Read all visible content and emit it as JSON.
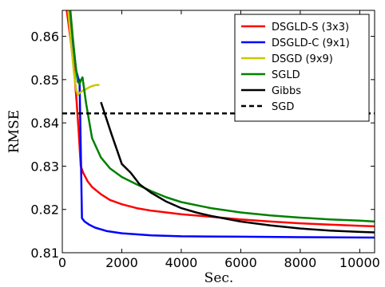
{
  "chart_data": {
    "type": "line",
    "title": "",
    "xlabel": "Sec.",
    "ylabel": "RMSE",
    "xlim": [
      0,
      10500
    ],
    "ylim": [
      0.81,
      0.866
    ],
    "x_ticks": [
      0,
      2000,
      4000,
      6000,
      8000,
      10000
    ],
    "y_ticks": [
      0.81,
      0.82,
      0.83,
      0.84,
      0.85,
      0.86
    ],
    "x_tick_labels": [
      "0",
      "2000",
      "4000",
      "6000",
      "8000",
      "10000"
    ],
    "y_tick_labels": [
      "0.81",
      "0.82",
      "0.83",
      "0.84",
      "0.85",
      "0.86"
    ],
    "grid": false,
    "legend_position": "top-right",
    "series": [
      {
        "name": "DSGLD-S (3x3)",
        "color": "#ff0000",
        "style": "solid",
        "points": [
          [
            150,
            0.866
          ],
          [
            300,
            0.858
          ],
          [
            400,
            0.852
          ],
          [
            480,
            0.845
          ],
          [
            550,
            0.838
          ],
          [
            620,
            0.83
          ],
          [
            700,
            0.8285
          ],
          [
            850,
            0.8265
          ],
          [
            1000,
            0.8252
          ],
          [
            1300,
            0.8235
          ],
          [
            1600,
            0.8222
          ],
          [
            2000,
            0.8212
          ],
          [
            2500,
            0.8203
          ],
          [
            3000,
            0.8197
          ],
          [
            3500,
            0.8193
          ],
          [
            4000,
            0.8189
          ],
          [
            5000,
            0.8183
          ],
          [
            6000,
            0.8177
          ],
          [
            7000,
            0.8172
          ],
          [
            8000,
            0.8168
          ],
          [
            9000,
            0.8165
          ],
          [
            10000,
            0.8162
          ],
          [
            10500,
            0.8161
          ]
        ]
      },
      {
        "name": "DSGLD-C (9x1)",
        "color": "#0000ff",
        "style": "solid",
        "points": [
          [
            250,
            0.866
          ],
          [
            330,
            0.86
          ],
          [
            400,
            0.856
          ],
          [
            470,
            0.852
          ],
          [
            530,
            0.8505
          ],
          [
            580,
            0.8495
          ],
          [
            630,
            0.83
          ],
          [
            660,
            0.818
          ],
          [
            750,
            0.8172
          ],
          [
            900,
            0.8165
          ],
          [
            1100,
            0.8158
          ],
          [
            1500,
            0.815
          ],
          [
            2000,
            0.8145
          ],
          [
            3000,
            0.814
          ],
          [
            4000,
            0.8138
          ],
          [
            6000,
            0.8137
          ],
          [
            8000,
            0.8136
          ],
          [
            10500,
            0.8135
          ]
        ]
      },
      {
        "name": "DSGD (9x9)",
        "color": "#c8c800",
        "style": "solid",
        "points": [
          [
            200,
            0.866
          ],
          [
            300,
            0.858
          ],
          [
            400,
            0.851
          ],
          [
            470,
            0.8475
          ],
          [
            520,
            0.8465
          ],
          [
            600,
            0.847
          ],
          [
            700,
            0.8475
          ],
          [
            800,
            0.8478
          ],
          [
            900,
            0.8482
          ],
          [
            1000,
            0.8485
          ],
          [
            1100,
            0.8487
          ],
          [
            1250,
            0.8488
          ]
        ]
      },
      {
        "name": "SGLD",
        "color": "#008000",
        "style": "solid",
        "points": [
          [
            270,
            0.866
          ],
          [
            350,
            0.86
          ],
          [
            450,
            0.853
          ],
          [
            520,
            0.8495
          ],
          [
            580,
            0.849
          ],
          [
            630,
            0.85
          ],
          [
            680,
            0.8505
          ],
          [
            800,
            0.8445
          ],
          [
            1000,
            0.8365
          ],
          [
            1300,
            0.832
          ],
          [
            1600,
            0.8295
          ],
          [
            2000,
            0.8275
          ],
          [
            2500,
            0.8258
          ],
          [
            3000,
            0.8242
          ],
          [
            3500,
            0.8228
          ],
          [
            4000,
            0.8217
          ],
          [
            5000,
            0.8203
          ],
          [
            6000,
            0.8193
          ],
          [
            7000,
            0.8186
          ],
          [
            8000,
            0.8181
          ],
          [
            9000,
            0.8177
          ],
          [
            10000,
            0.8174
          ],
          [
            10500,
            0.8172
          ]
        ]
      },
      {
        "name": "Gibbs",
        "color": "#000000",
        "style": "solid",
        "points": [
          [
            1300,
            0.8448
          ],
          [
            1650,
            0.8375
          ],
          [
            2000,
            0.8305
          ],
          [
            2300,
            0.8285
          ],
          [
            2600,
            0.8258
          ],
          [
            3000,
            0.8238
          ],
          [
            3500,
            0.8218
          ],
          [
            4000,
            0.8203
          ],
          [
            4500,
            0.8193
          ],
          [
            5000,
            0.8185
          ],
          [
            6000,
            0.8172
          ],
          [
            7000,
            0.8163
          ],
          [
            8000,
            0.8156
          ],
          [
            9000,
            0.8151
          ],
          [
            10000,
            0.8148
          ],
          [
            10500,
            0.8147
          ]
        ]
      },
      {
        "name": "SGD",
        "color": "#000000",
        "style": "dashed",
        "points": [
          [
            0,
            0.8422
          ],
          [
            10500,
            0.8422
          ]
        ]
      }
    ]
  }
}
